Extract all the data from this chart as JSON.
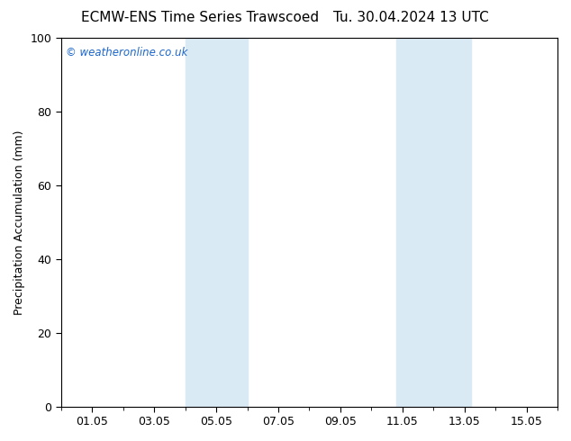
{
  "title_left": "ECMW-ENS Time Series Trawscoed",
  "title_right": "Tu. 30.04.2024 13 UTC",
  "ylabel": "Precipitation Accumulation (mm)",
  "ylim": [
    0,
    100
  ],
  "yticks": [
    0,
    20,
    40,
    60,
    80,
    100
  ],
  "x_tick_labels": [
    "01.05",
    "03.05",
    "05.05",
    "07.05",
    "09.05",
    "11.05",
    "13.05",
    "15.05"
  ],
  "x_tick_days": [
    1,
    3,
    5,
    7,
    9,
    11,
    13,
    15
  ],
  "xlim_days": [
    0,
    16
  ],
  "shaded_bands": [
    {
      "x_start": 4.0,
      "x_end": 6.0,
      "color": "#daeaf5"
    },
    {
      "x_start": 10.8,
      "x_end": 13.2,
      "color": "#daeaf5"
    }
  ],
  "watermark_text": "© weatheronline.co.uk",
  "watermark_color": "#1a66cc",
  "background_color": "#ffffff",
  "plot_bg_color": "#ffffff",
  "title_fontsize": 11,
  "tick_label_fontsize": 9,
  "ylabel_fontsize": 9
}
